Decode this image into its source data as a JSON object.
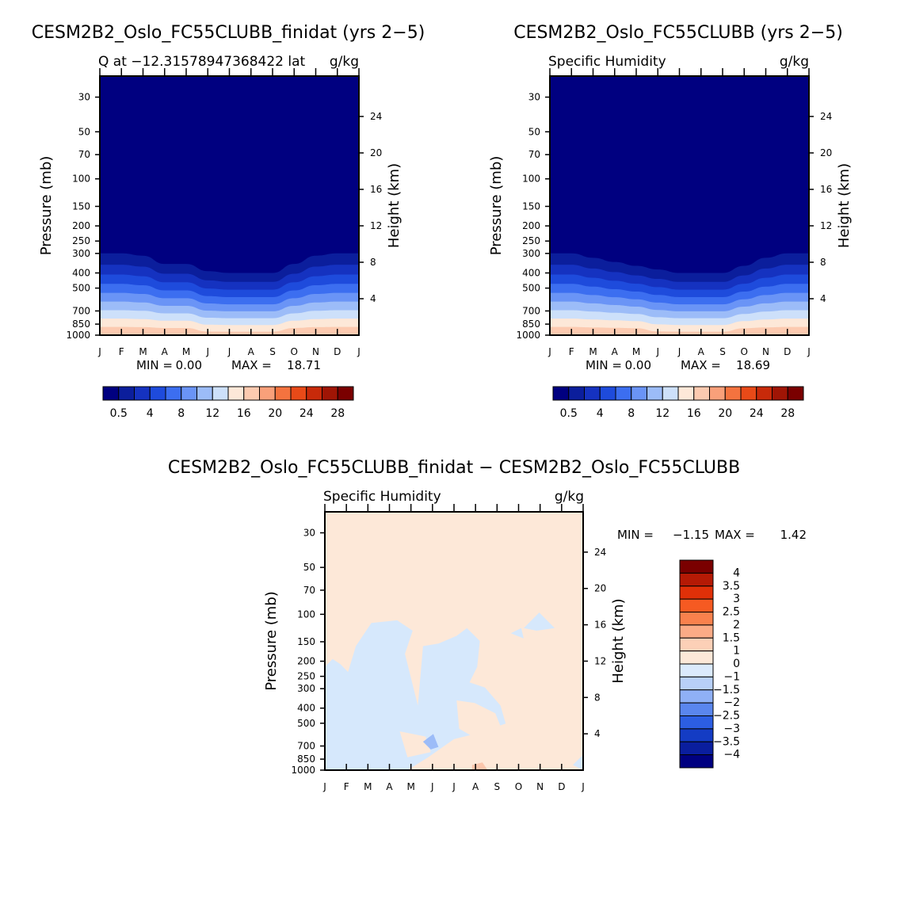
{
  "months": [
    "J",
    "F",
    "M",
    "A",
    "M",
    "J",
    "J",
    "A",
    "S",
    "O",
    "N",
    "D",
    "J"
  ],
  "pressure_ticks": [
    30,
    50,
    70,
    100,
    150,
    200,
    250,
    300,
    400,
    500,
    700,
    850,
    1000
  ],
  "height_ticks": [
    24,
    20,
    16,
    12,
    8,
    4
  ],
  "ylabel": "Pressure (mb)",
  "ylabel_right": "Height (km)",
  "chart_data": [
    {
      "type": "heatmap",
      "title": "CESM2B2_Oslo_FC55CLUBB_finidat (yrs 2−5)",
      "subtitle_left": "Q at −12.31578947368422 lat",
      "subtitle_right": "g/kg",
      "min_label": "MIN =",
      "min": "0.00",
      "max_label": "MAX =",
      "max": "18.71",
      "x_labels": [
        "J",
        "F",
        "M",
        "A",
        "M",
        "J",
        "J",
        "A",
        "S",
        "O",
        "N",
        "D",
        "J"
      ],
      "ylabel": "Pressure (mb)",
      "ylabel_right": "Height (km)",
      "tropopause_pressure_mb": [
        300,
        300,
        310,
        350,
        350,
        390,
        400,
        400,
        400,
        350,
        310,
        300,
        300
      ],
      "colorbar_labels": [
        "0.5",
        "4",
        "8",
        "12",
        "16",
        "20",
        "24",
        "28"
      ]
    },
    {
      "type": "heatmap",
      "title": "CESM2B2_Oslo_FC55CLUBB (yrs 2−5)",
      "subtitle_left": "Specific Humidity",
      "subtitle_right": "g/kg",
      "min_label": "MIN =",
      "min": "0.00",
      "max_label": "MAX =",
      "max": "18.69",
      "x_labels": [
        "J",
        "F",
        "M",
        "A",
        "M",
        "J",
        "J",
        "A",
        "S",
        "O",
        "N",
        "D",
        "J"
      ],
      "ylabel": "Pressure (mb)",
      "ylabel_right": "Height (km)",
      "tropopause_pressure_mb": [
        300,
        300,
        320,
        340,
        360,
        380,
        400,
        400,
        400,
        360,
        320,
        300,
        300
      ],
      "colorbar_labels": [
        "0.5",
        "4",
        "8",
        "12",
        "16",
        "20",
        "24",
        "28"
      ]
    },
    {
      "type": "heatmap",
      "title": "CESM2B2_Oslo_FC55CLUBB_finidat − CESM2B2_Oslo_FC55CLUBB",
      "subtitle_left": "Specific Humidity",
      "subtitle_right": "g/kg",
      "min_label": "MIN =",
      "min": "−1.15",
      "max_label": "MAX =",
      "max": "1.42",
      "x_labels": [
        "J",
        "F",
        "M",
        "A",
        "M",
        "J",
        "J",
        "A",
        "S",
        "O",
        "N",
        "D",
        "J"
      ],
      "ylabel": "Pressure (mb)",
      "ylabel_right": "Height (km)",
      "colorbar_labels": [
        "4",
        "3.5",
        "3",
        "2.5",
        "2",
        "1.5",
        "1",
        "0",
        "−1",
        "−1.5",
        "−2",
        "−2.5",
        "−3",
        "−3.5",
        "−4"
      ]
    }
  ],
  "colors": {
    "seq": [
      "#000080",
      "#0b1e9c",
      "#1532c0",
      "#1e4bdc",
      "#3c6ef0",
      "#6a94f6",
      "#9cbcf8",
      "#cde0fa",
      "#fde8d8",
      "#fccab0",
      "#f9a07a",
      "#f4733f",
      "#e84a18",
      "#c82a0a",
      "#a01505",
      "#7a0000"
    ],
    "diff_cb": [
      "#7a0000",
      "#b51a05",
      "#e03008",
      "#f65a22",
      "#f9814d",
      "#fbab86",
      "#fcd0b7",
      "#fde8d8",
      "#dbeafc",
      "#b8d0f8",
      "#8fb0f6",
      "#5a86ee",
      "#2c5ee2",
      "#143cc4",
      "#0a1e9e",
      "#000080"
    ],
    "diff_pos": "#fde8d8",
    "diff_neg": "#d6e8fc",
    "diff_neg2": "#9cbcf8",
    "diff_pos2": "#fbc6ac"
  }
}
